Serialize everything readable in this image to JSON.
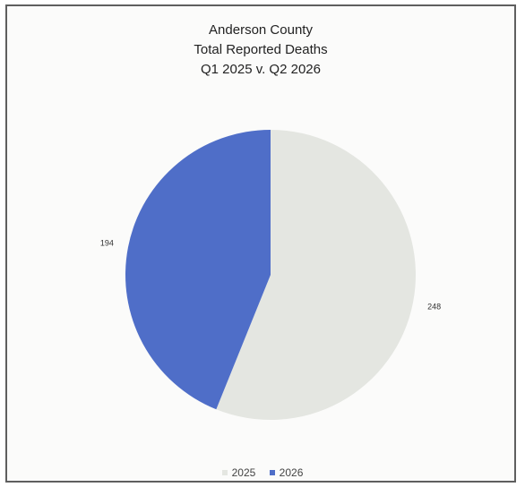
{
  "chart_data": {
    "type": "pie",
    "title": [
      "Anderson County",
      "Total Reported Deaths",
      "Q1 2025 v. Q2 2026"
    ],
    "categories": [
      "2025",
      "2026"
    ],
    "values": [
      248,
      194
    ],
    "colors": [
      "#e4e6e1",
      "#4f6ec8"
    ],
    "start_angle_deg": 0,
    "direction": "clockwise",
    "legend": "bottom"
  }
}
